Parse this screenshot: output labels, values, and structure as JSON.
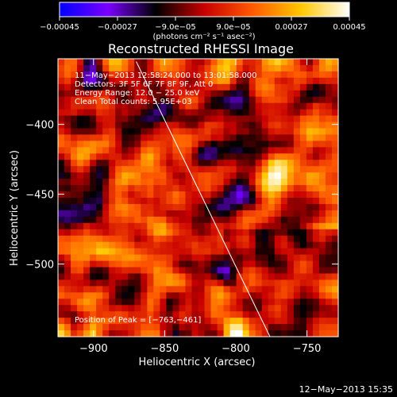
{
  "chart_data": {
    "type": "heatmap",
    "title": "Reconstructed RHESSI Image",
    "xlabel": "Heliocentric X (arcsec)",
    "ylabel": "Heliocentric Y (arcsec)",
    "xlim": [
      -925,
      -728
    ],
    "ylim": [
      -552,
      -353
    ],
    "xticks": [
      {
        "value": -900,
        "label": "−900"
      },
      {
        "value": -850,
        "label": "−850"
      },
      {
        "value": -800,
        "label": "−800"
      },
      {
        "value": -750,
        "label": "−750"
      }
    ],
    "yticks": [
      {
        "value": -400,
        "label": "−400"
      },
      {
        "value": -450,
        "label": "−450"
      },
      {
        "value": -500,
        "label": "−500"
      }
    ],
    "colorbar": {
      "range": [
        -0.00045,
        0.00045
      ],
      "ticks": [
        {
          "value": -0.00045,
          "label": "−0.00045"
        },
        {
          "value": -0.00027,
          "label": "−0.00027"
        },
        {
          "value": -9e-05,
          "label": "−9.0e−05"
        },
        {
          "value": 9e-05,
          "label": "9.0e−05"
        },
        {
          "value": 0.00027,
          "label": "0.00027"
        },
        {
          "value": 0.00045,
          "label": "0.00045"
        }
      ],
      "units_label": "(photons cm⁻² s⁻¹ asec⁻²)",
      "colors": [
        "#0000ff",
        "#7a00ff",
        "#000000",
        "#c80000",
        "#ff5a00",
        "#ffc800",
        "#ffffff"
      ]
    },
    "limb_line": {
      "x": [
        -870,
        -776
      ],
      "y": [
        -355,
        -552
      ]
    },
    "peak": {
      "x": -763,
      "y": -461
    },
    "annotations": {
      "time_range": "11−May−2013 12:58:24.000 to 13:01:58.000",
      "detectors": "Detectors: 3F 5F 6F 7F 8F 9F, Att 0",
      "energy_range": "Energy Range: 12.0 − 25.0 keV",
      "method_counts": "Clean   Total counts: 5.95E+03",
      "peak_position": "Position of Peak = [−763,−461]"
    },
    "grid": false
  },
  "footer": {
    "date": "12−May−2013 15:35"
  }
}
